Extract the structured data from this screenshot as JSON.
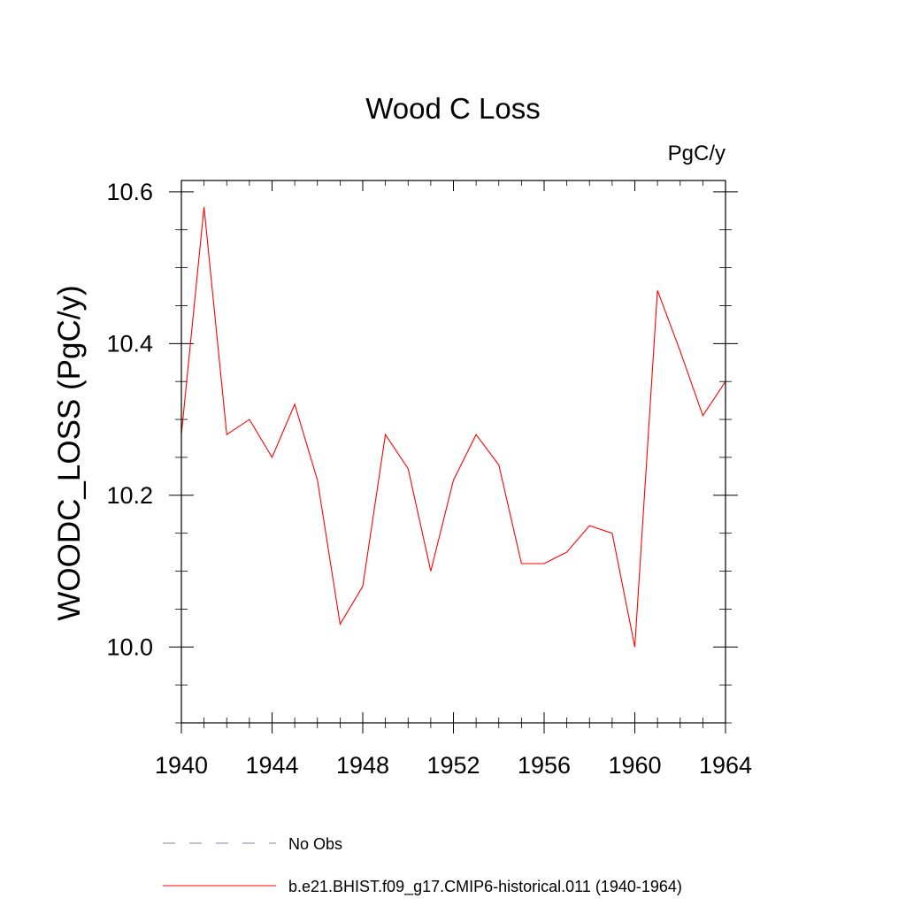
{
  "chart_data": {
    "type": "line",
    "title": "Wood C Loss",
    "units_label": "PgC/y",
    "ylabel": "WOODC_LOSS  (PgC/y)",
    "xlabel": "",
    "xlim": [
      1940,
      1964
    ],
    "ylim": [
      9.9,
      10.615
    ],
    "x_ticks": [
      1940,
      1944,
      1948,
      1952,
      1956,
      1960,
      1964
    ],
    "y_ticks": [
      10.0,
      10.2,
      10.4,
      10.6
    ],
    "x_tick_labels": [
      "1940",
      "1944",
      "1948",
      "1952",
      "1956",
      "1960",
      "1964"
    ],
    "y_tick_labels": [
      "10.0",
      "10.2",
      "10.4",
      "10.6"
    ],
    "grid": false,
    "legend_position": "bottom",
    "series": [
      {
        "name": "b.e21.BHIST.f09_g17.CMIP6-historical.011 (1940-1964)",
        "color": "#ff0000",
        "style": "solid",
        "x": [
          1940,
          1941,
          1942,
          1943,
          1944,
          1945,
          1946,
          1947,
          1948,
          1949,
          1950,
          1951,
          1952,
          1953,
          1954,
          1955,
          1956,
          1957,
          1958,
          1959,
          1960,
          1961,
          1962,
          1963,
          1964
        ],
        "values": [
          10.28,
          10.58,
          10.28,
          10.3,
          10.25,
          10.32,
          10.22,
          10.03,
          10.08,
          10.28,
          10.235,
          10.1,
          10.22,
          10.28,
          10.24,
          10.11,
          10.11,
          10.125,
          10.16,
          10.15,
          10.0,
          10.47,
          10.39,
          10.305,
          10.35
        ]
      }
    ],
    "legend": [
      {
        "label": "No Obs",
        "color": "#8080b0",
        "style": "dashed"
      },
      {
        "label": "b.e21.BHIST.f09_g17.CMIP6-historical.011 (1940-1964)",
        "color": "#ff0000",
        "style": "solid"
      }
    ]
  }
}
